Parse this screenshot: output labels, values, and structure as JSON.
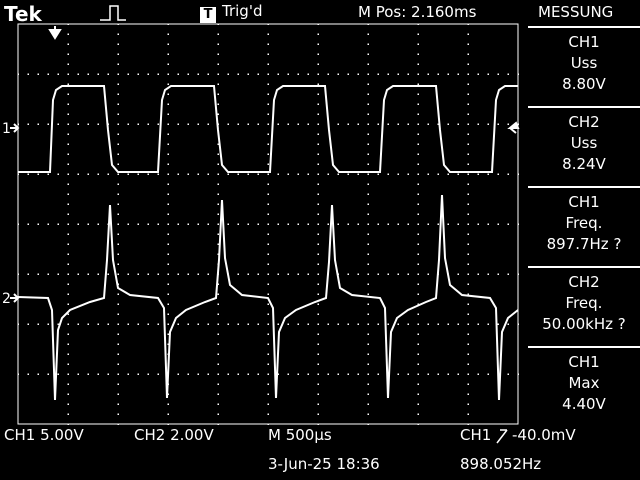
{
  "header": {
    "logo": "Tek",
    "trigger_badge": "T",
    "trigger_status": "Trig'd",
    "horizontal_position": "M Pos: 2.160ms",
    "menu_title": "MESSUNG"
  },
  "markers": {
    "ch1": "1",
    "ch2": "2"
  },
  "measurements": [
    {
      "channel": "CH1",
      "type": "Uss",
      "value": "8.80V"
    },
    {
      "channel": "CH2",
      "type": "Uss",
      "value": "8.24V"
    },
    {
      "channel": "CH1",
      "type": "Freq.",
      "value": "897.7Hz ?"
    },
    {
      "channel": "CH2",
      "type": "Freq.",
      "value": "50.00kHz ?"
    },
    {
      "channel": "CH1",
      "type": "Max",
      "value": "4.40V"
    }
  ],
  "footer": {
    "ch1_scale": "CH1  5.00V",
    "ch2_scale": "CH2  2.00V",
    "timebase": "M 500µs",
    "trigger_source": "CH1",
    "trigger_level": "-40.0mV",
    "date_time": "3-Jun-25 18:36",
    "trigger_frequency": "898.052Hz"
  },
  "colors": {
    "background": "#000000",
    "trace": "#ffffff",
    "grid": "#ffffff"
  }
}
